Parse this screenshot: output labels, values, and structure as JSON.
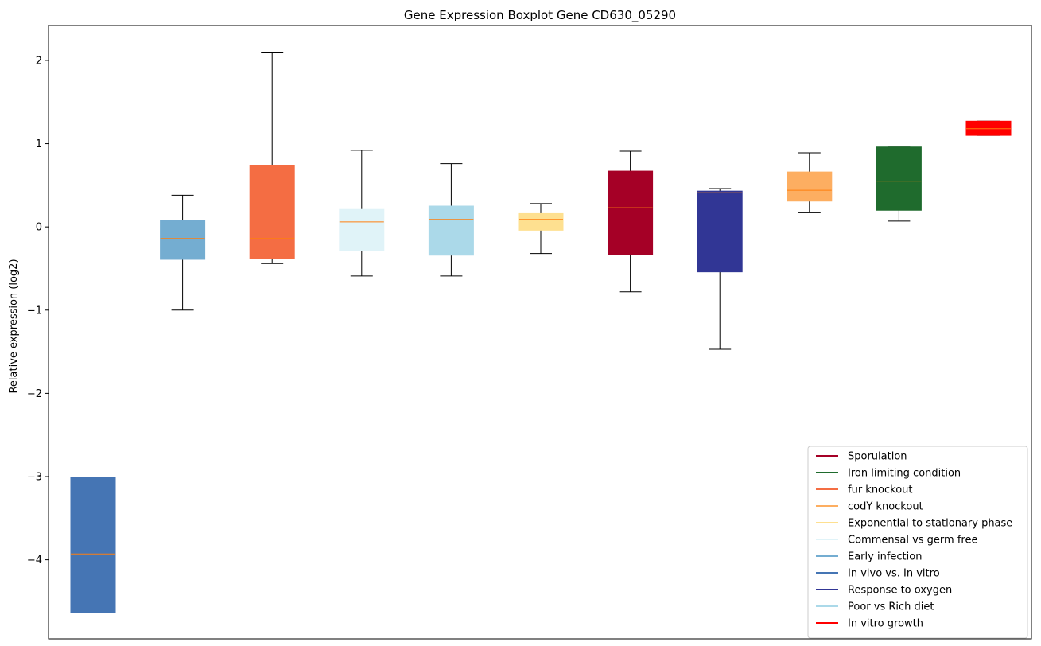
{
  "chart_data": {
    "type": "boxplot",
    "title": "Gene Expression Boxplot Gene CD630_05290",
    "xlabel": "",
    "ylabel": "Relative expression (log2)",
    "ylim": [
      -4.95,
      2.42
    ],
    "yticks": [
      2,
      1,
      0,
      -1,
      -2,
      -3,
      -4
    ],
    "ytick_labels": [
      "2",
      "1",
      "0",
      "−1",
      "−2",
      "−3",
      "−4"
    ],
    "grid": false,
    "median_color": "#ff7f0e",
    "whisker_color": "#000000",
    "boxes": [
      {
        "condition": "In vivo vs. In vitro",
        "color": "#4575b4",
        "whisker_low": -4.63,
        "q1": -4.63,
        "median": -3.93,
        "q3": -3.01,
        "whisker_high": -3.01
      },
      {
        "condition": "Early infection",
        "color": "#74add1",
        "whisker_low": -1.0,
        "q1": -0.39,
        "median": -0.14,
        "q3": 0.08,
        "whisker_high": 0.38
      },
      {
        "condition": "fur knockout",
        "color": "#f46d43",
        "whisker_low": -0.44,
        "q1": -0.38,
        "median": -0.14,
        "q3": 0.74,
        "whisker_high": 2.1
      },
      {
        "condition": "Commensal vs germ free",
        "color": "#e0f3f8",
        "whisker_low": -0.59,
        "q1": -0.29,
        "median": 0.06,
        "q3": 0.21,
        "whisker_high": 0.92
      },
      {
        "condition": "Poor vs Rich diet",
        "color": "#abd9e9",
        "whisker_low": -0.59,
        "q1": -0.34,
        "median": 0.09,
        "q3": 0.25,
        "whisker_high": 0.76
      },
      {
        "condition": "Exponential to stationary phase",
        "color": "#fee090",
        "whisker_low": -0.32,
        "q1": -0.04,
        "median": 0.09,
        "q3": 0.16,
        "whisker_high": 0.28
      },
      {
        "condition": "Sporulation",
        "color": "#a50026",
        "whisker_low": -0.78,
        "q1": -0.33,
        "median": 0.23,
        "q3": 0.67,
        "whisker_high": 0.91
      },
      {
        "condition": "Response to oxygen",
        "color": "#313695",
        "whisker_low": -1.47,
        "q1": -0.54,
        "median": 0.41,
        "q3": 0.43,
        "whisker_high": 0.46
      },
      {
        "condition": "codY knockout",
        "color": "#fdae61",
        "whisker_low": 0.17,
        "q1": 0.31,
        "median": 0.44,
        "q3": 0.66,
        "whisker_high": 0.89
      },
      {
        "condition": "Iron limiting condition",
        "color": "#1f6b2d",
        "whisker_low": 0.07,
        "q1": 0.2,
        "median": 0.55,
        "q3": 0.96,
        "whisker_high": 0.96
      },
      {
        "condition": "In vitro growth",
        "color": "#ff0000",
        "whisker_low": 1.1,
        "q1": 1.1,
        "median": 1.18,
        "q3": 1.27,
        "whisker_high": 1.27
      }
    ],
    "legend": {
      "placement": "lower-right",
      "entries": [
        {
          "label": "Sporulation",
          "color": "#a50026"
        },
        {
          "label": "Iron limiting condition",
          "color": "#1f6b2d"
        },
        {
          "label": "fur knockout",
          "color": "#f46d43"
        },
        {
          "label": "codY knockout",
          "color": "#fdae61"
        },
        {
          "label": "Exponential to stationary phase",
          "color": "#fee090"
        },
        {
          "label": "Commensal vs germ free",
          "color": "#e0f3f8"
        },
        {
          "label": "Early infection",
          "color": "#74add1"
        },
        {
          "label": "In vivo vs. In vitro",
          "color": "#4575b4"
        },
        {
          "label": "Response to oxygen",
          "color": "#313695"
        },
        {
          "label": "Poor vs Rich diet",
          "color": "#abd9e9"
        },
        {
          "label": "In vitro growth",
          "color": "#ff0000"
        }
      ]
    }
  }
}
